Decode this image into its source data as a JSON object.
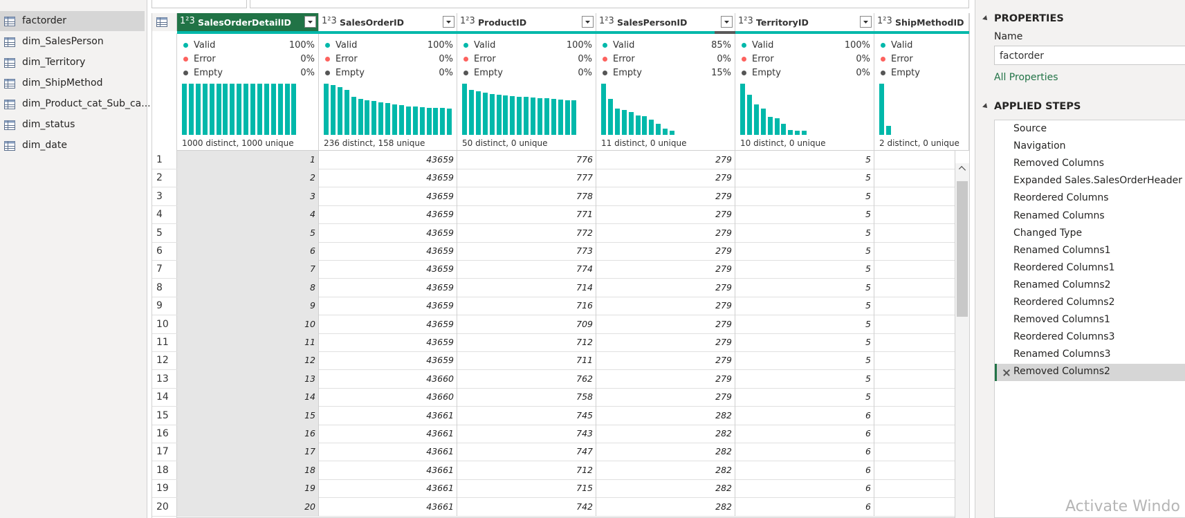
{
  "queries": {
    "items": [
      "factorder",
      "dim_SalesPerson",
      "dim_Territory",
      "dim_ShipMethod",
      "dim_Product_cat_Sub_ca...",
      "dim_status",
      "dim_date"
    ],
    "selected": 0
  },
  "grid": {
    "type_icon": "1²3",
    "quality_labels": [
      "Valid",
      "Error",
      "Empty"
    ],
    "columns": [
      {
        "name": "SalesOrderDetailID",
        "quality": [
          "100%",
          "0%",
          "0%"
        ],
        "distinct": "1000 distinct, 1000 unique",
        "distribution": [
          100,
          100,
          100,
          100,
          100,
          100,
          100,
          100,
          100,
          100,
          100,
          100,
          100,
          100,
          100,
          100,
          100
        ]
      },
      {
        "name": "SalesOrderID",
        "quality": [
          "100%",
          "0%",
          "0%"
        ],
        "distinct": "236 distinct, 158 unique",
        "distribution": [
          100,
          97,
          93,
          88,
          75,
          70,
          68,
          66,
          64,
          62,
          60,
          58,
          56,
          55,
          54,
          53,
          53,
          53,
          52
        ]
      },
      {
        "name": "ProductID",
        "quality": [
          "100%",
          "0%",
          "0%"
        ],
        "distinct": "50 distinct, 0 unique",
        "distribution": [
          100,
          88,
          85,
          83,
          80,
          78,
          77,
          76,
          75,
          74,
          73,
          72,
          71,
          70,
          69,
          68,
          67
        ]
      },
      {
        "name": "SalesPersonID",
        "quality": [
          "85%",
          "0%",
          "15%"
        ],
        "distinct": "11 distinct, 0 unique",
        "distribution": [
          100,
          70,
          52,
          48,
          44,
          38,
          36,
          30,
          22,
          12,
          8
        ]
      },
      {
        "name": "TerritoryID",
        "quality": [
          "100%",
          "0%",
          "0%"
        ],
        "distinct": "10 distinct, 0 unique",
        "distribution": [
          100,
          78,
          60,
          52,
          35,
          33,
          22,
          10,
          8,
          8
        ]
      },
      {
        "name": "ShipMethodID",
        "quality": [
          null,
          null,
          null
        ],
        "distinct": "2 distinct, 0 unique",
        "distribution": [
          100,
          18
        ]
      }
    ],
    "rows": [
      [
        1,
        1,
        43659,
        776,
        279,
        5
      ],
      [
        2,
        2,
        43659,
        777,
        279,
        5
      ],
      [
        3,
        3,
        43659,
        778,
        279,
        5
      ],
      [
        4,
        4,
        43659,
        771,
        279,
        5
      ],
      [
        5,
        5,
        43659,
        772,
        279,
        5
      ],
      [
        6,
        6,
        43659,
        773,
        279,
        5
      ],
      [
        7,
        7,
        43659,
        774,
        279,
        5
      ],
      [
        8,
        8,
        43659,
        714,
        279,
        5
      ],
      [
        9,
        9,
        43659,
        716,
        279,
        5
      ],
      [
        10,
        10,
        43659,
        709,
        279,
        5
      ],
      [
        11,
        11,
        43659,
        712,
        279,
        5
      ],
      [
        12,
        12,
        43659,
        711,
        279,
        5
      ],
      [
        13,
        13,
        43660,
        762,
        279,
        5
      ],
      [
        14,
        14,
        43660,
        758,
        279,
        5
      ],
      [
        15,
        15,
        43661,
        745,
        282,
        6
      ],
      [
        16,
        16,
        43661,
        743,
        282,
        6
      ],
      [
        17,
        17,
        43661,
        747,
        282,
        6
      ],
      [
        18,
        18,
        43661,
        712,
        282,
        6
      ],
      [
        19,
        19,
        43661,
        715,
        282,
        6
      ],
      [
        20,
        20,
        43661,
        742,
        282,
        6
      ]
    ]
  },
  "settings": {
    "properties_title": "PROPERTIES",
    "name_label": "Name",
    "name_value": "factorder",
    "all_properties": "All Properties",
    "steps_title": "APPLIED STEPS",
    "steps": [
      "Source",
      "Navigation",
      "Removed Columns",
      "Expanded Sales.SalesOrderHeader",
      "Reordered Columns",
      "Renamed Columns",
      "Changed Type",
      "Renamed Columns1",
      "Reordered Columns1",
      "Renamed Columns2",
      "Reordered Columns2",
      "Removed Columns1",
      "Reordered Columns3",
      "Renamed Columns3",
      "Removed Columns2"
    ],
    "selected_step": 14
  },
  "watermark": "Activate Windo"
}
